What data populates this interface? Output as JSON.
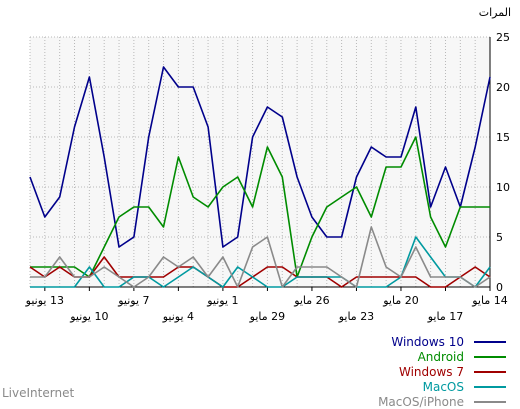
{
  "chart_data": {
    "type": "line",
    "unit_label": "المرات",
    "watermark": "LiveInternet",
    "ylim": [
      0,
      25
    ],
    "y_ticks": [
      0,
      5,
      10,
      15,
      20,
      25
    ],
    "y_tick_labels": [
      "0",
      "5",
      "10",
      "15",
      "20",
      "25"
    ],
    "x_start": "2014-05-14",
    "x_end": "2014-06-14",
    "x_direction": "right-to-left",
    "x_tick_labels": [
      {
        "label": "14 مايو",
        "days": 0,
        "row": 1
      },
      {
        "label": "17 مايو",
        "days": 3,
        "row": 2
      },
      {
        "label": "20 مايو",
        "days": 6,
        "row": 1
      },
      {
        "label": "23 مايو",
        "days": 9,
        "row": 2
      },
      {
        "label": "26 مايو",
        "days": 12,
        "row": 1
      },
      {
        "label": "29 مايو",
        "days": 15,
        "row": 2
      },
      {
        "label": "1 يونيو",
        "days": 18,
        "row": 1
      },
      {
        "label": "4 يونيو",
        "days": 21,
        "row": 2
      },
      {
        "label": "7 يونيو",
        "days": 24,
        "row": 1
      },
      {
        "label": "10 يونيو",
        "days": 27,
        "row": 2
      },
      {
        "label": "13 يونيو",
        "days": 30,
        "row": 1
      }
    ],
    "grid": true,
    "legend_position": "bottom-right",
    "series": [
      {
        "name": "Windows 10",
        "color": "#00008b",
        "values": [
          21,
          14,
          8,
          12,
          8,
          18,
          13,
          13,
          14,
          11,
          5,
          5,
          7,
          11,
          17,
          18,
          15,
          5,
          4,
          16,
          20,
          20,
          22,
          15,
          5,
          4,
          13,
          21,
          16,
          9,
          7,
          11
        ]
      },
      {
        "name": "Android",
        "color": "#008c00",
        "values": [
          8,
          8,
          8,
          4,
          7,
          15,
          12,
          12,
          7,
          10,
          9,
          8,
          5,
          1,
          11,
          14,
          8,
          11,
          10,
          8,
          9,
          13,
          6,
          8,
          8,
          7,
          4,
          1,
          2,
          2,
          2,
          2
        ]
      },
      {
        "name": "Windows 7",
        "color": "#a00000",
        "values": [
          1,
          2,
          1,
          0,
          0,
          1,
          1,
          1,
          1,
          1,
          0,
          1,
          1,
          1,
          2,
          2,
          1,
          0,
          0,
          1,
          2,
          2,
          1,
          1,
          1,
          1,
          3,
          1,
          1,
          2,
          1,
          2
        ]
      },
      {
        "name": "MacOS",
        "color": "#009aa0",
        "values": [
          2,
          0,
          1,
          1,
          3,
          5,
          1,
          0,
          0,
          0,
          1,
          1,
          1,
          1,
          0,
          0,
          1,
          2,
          0,
          1,
          2,
          1,
          0,
          1,
          1,
          0,
          0,
          2,
          0,
          0,
          0,
          0
        ]
      },
      {
        "name": "MacOS/iPhone",
        "color": "#8a8a8a",
        "values": [
          1,
          0,
          1,
          1,
          1,
          4,
          1,
          2,
          6,
          0,
          1,
          2,
          2,
          2,
          0,
          5,
          4,
          0,
          3,
          1,
          3,
          2,
          3,
          1,
          0,
          1,
          2,
          1,
          1,
          3,
          1,
          1
        ]
      }
    ]
  }
}
